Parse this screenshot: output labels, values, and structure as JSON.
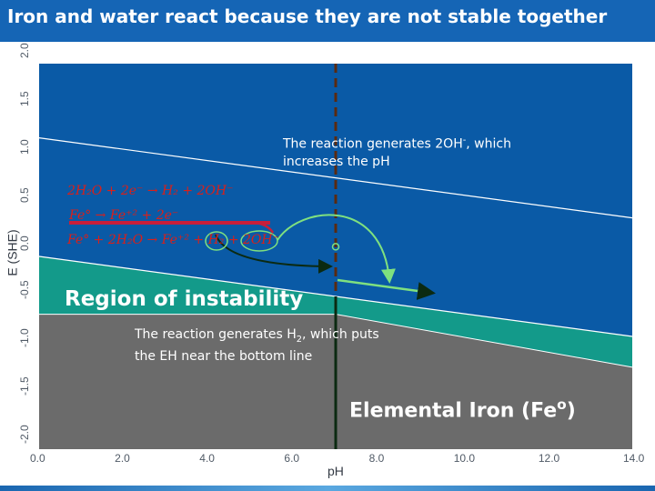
{
  "title": "Iron and water react because they are not stable together",
  "annotations": {
    "hydroxide_note": {
      "line1_pre": "The reaction generates 2OH",
      "line1_sup": "-",
      "line1_post": ", which",
      "line2": "increases the pH"
    },
    "hydrogen_note": {
      "line1_pre": "The reaction generates H",
      "line1_sub": "2",
      "line1_post": ", which puts",
      "line2": "the EH near the bottom line"
    },
    "region_label": "Region of instability",
    "iron_label": {
      "pre": "Elemental Iron (Fe",
      "sup": "o",
      "post": ")"
    }
  },
  "equations": {
    "water_reduction": "2H₂O + 2e⁻ → H₂ + 2OH⁻",
    "iron_oxidation": "Fe°            → Fe⁺² + 2e⁻",
    "overall": "Fe° + 2H₂O → Fe⁺² + H₂ + 2OH⁻"
  },
  "chart_data": {
    "type": "area",
    "xlabel": "pH",
    "ylabel": "E (SHE)",
    "xlim": [
      0,
      14
    ],
    "ylim": [
      -2.0,
      2.0
    ],
    "x_ticks": [
      "0.0",
      "2.0",
      "4.0",
      "6.0",
      "8.0",
      "10.0",
      "12.0",
      "14.0"
    ],
    "y_ticks": [
      "2.0",
      "1.5",
      "1.0",
      "0.5",
      "0.0",
      "-0.5",
      "-1.0",
      "-1.5",
      "-2.0"
    ],
    "water_upper_line": [
      [
        0,
        1.23
      ],
      [
        14,
        0.4
      ]
    ],
    "water_lower_line": [
      [
        0,
        0.0
      ],
      [
        14,
        -0.83
      ]
    ],
    "iron_boundary": [
      [
        0,
        -0.6
      ],
      [
        7,
        -0.6
      ],
      [
        14,
        -1.15
      ]
    ],
    "dashed_marker_ph": 7.0,
    "regions": [
      {
        "name": "water-stable",
        "color": "#0a5aa6"
      },
      {
        "name": "instability",
        "color": "#139a8a"
      },
      {
        "name": "iron",
        "color": "#6b6b6b"
      }
    ]
  }
}
